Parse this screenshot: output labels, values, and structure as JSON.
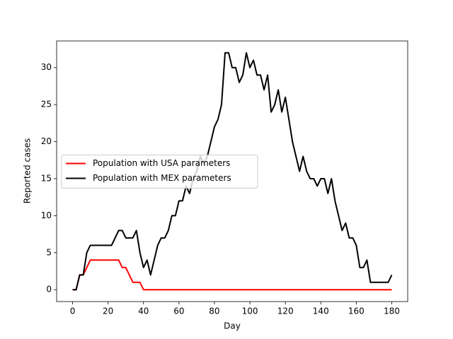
{
  "chart_data": {
    "type": "line",
    "x_label": "Day",
    "y_label": "Reported cases",
    "x": [
      0,
      2,
      4,
      6,
      8,
      10,
      12,
      14,
      16,
      18,
      20,
      22,
      24,
      26,
      28,
      30,
      32,
      34,
      36,
      38,
      40,
      42,
      44,
      46,
      48,
      50,
      52,
      54,
      56,
      58,
      60,
      62,
      64,
      66,
      68,
      70,
      72,
      74,
      76,
      78,
      80,
      82,
      84,
      86,
      88,
      90,
      92,
      94,
      96,
      98,
      100,
      102,
      104,
      106,
      108,
      110,
      112,
      114,
      116,
      118,
      120,
      122,
      124,
      126,
      128,
      130,
      132,
      134,
      136,
      138,
      140,
      142,
      144,
      146,
      148,
      150,
      152,
      154,
      156,
      158,
      160,
      162,
      164,
      166,
      168,
      170,
      172,
      174,
      176,
      178,
      180
    ],
    "series": [
      {
        "name": "Population with USA parameters",
        "color": "#ff0000",
        "values": [
          0,
          0,
          2,
          2,
          3,
          4,
          4,
          4,
          4,
          4,
          4,
          4,
          4,
          4,
          3,
          3,
          2,
          1,
          1,
          1,
          0,
          0,
          0,
          0,
          0,
          0,
          0,
          0,
          0,
          0,
          0,
          0,
          0,
          0,
          0,
          0,
          0,
          0,
          0,
          0,
          0,
          0,
          0,
          0,
          0,
          0,
          0,
          0,
          0,
          0,
          0,
          0,
          0,
          0,
          0,
          0,
          0,
          0,
          0,
          0,
          0,
          0,
          0,
          0,
          0,
          0,
          0,
          0,
          0,
          0,
          0,
          0,
          0,
          0,
          0,
          0,
          0,
          0,
          0,
          0,
          0,
          0,
          0,
          0,
          0,
          0,
          0,
          0,
          0,
          0,
          0
        ]
      },
      {
        "name": "Population with MEX parameters",
        "color": "#000000",
        "values": [
          0,
          0,
          2,
          2,
          5,
          6,
          6,
          6,
          6,
          6,
          6,
          6,
          7,
          8,
          8,
          7,
          7,
          7,
          8,
          5,
          3,
          4,
          2,
          4,
          6,
          7,
          7,
          8,
          10,
          10,
          12,
          12,
          14,
          13,
          15,
          16,
          18,
          17,
          18,
          20,
          22,
          23,
          25,
          32,
          32,
          30,
          30,
          28,
          29,
          32,
          30,
          31,
          29,
          29,
          27,
          29,
          24,
          25,
          27,
          24,
          26,
          23,
          20,
          18,
          16,
          18,
          16,
          15,
          15,
          14,
          15,
          15,
          13,
          15,
          12,
          10,
          8,
          9,
          7,
          7,
          6,
          3,
          3,
          4,
          1,
          1,
          1,
          1,
          1,
          1,
          2
        ]
      }
    ],
    "xlim": [
      -9,
      189
    ],
    "ylim": [
      -1.6,
      33.6
    ],
    "xticks": [
      0,
      20,
      40,
      60,
      80,
      100,
      120,
      140,
      160,
      180
    ],
    "yticks": [
      0,
      5,
      10,
      15,
      20,
      25,
      30
    ],
    "legend": "center left"
  }
}
